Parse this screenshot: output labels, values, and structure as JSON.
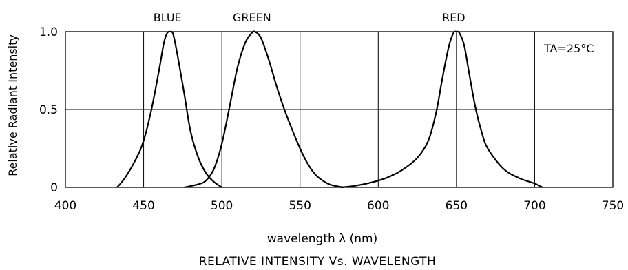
{
  "chart_data": {
    "type": "line",
    "title": "RELATIVE INTENSITY Vs. WAVELENGTH",
    "xlabel": "wavelength λ  (nm)",
    "ylabel": "Relative Radiant Intensity",
    "xlim": [
      400,
      750
    ],
    "ylim": [
      0,
      1.0
    ],
    "x_ticks": [
      400,
      450,
      500,
      550,
      600,
      650,
      700,
      750
    ],
    "x_tick_labels": [
      "400",
      "450",
      "500",
      "550",
      "600",
      "650",
      "700",
      "750"
    ],
    "y_ticks": [
      0,
      0.5,
      1.0
    ],
    "y_tick_labels": [
      "0",
      "0.5",
      "1.0"
    ],
    "grid": true,
    "annotation": "TA=25°C",
    "series": [
      {
        "name": "BLUE",
        "color": "#000000",
        "points": [
          [
            433,
            0.0
          ],
          [
            438,
            0.06
          ],
          [
            445,
            0.18
          ],
          [
            450,
            0.3
          ],
          [
            455,
            0.5
          ],
          [
            460,
            0.76
          ],
          [
            463,
            0.93
          ],
          [
            465,
            0.99
          ],
          [
            467,
            1.0
          ],
          [
            469,
            0.98
          ],
          [
            472,
            0.83
          ],
          [
            476,
            0.6
          ],
          [
            480,
            0.36
          ],
          [
            485,
            0.19
          ],
          [
            490,
            0.09
          ],
          [
            495,
            0.035
          ],
          [
            500,
            0.0
          ]
        ]
      },
      {
        "name": "GREEN",
        "color": "#000000",
        "points": [
          [
            476,
            0.0
          ],
          [
            485,
            0.02
          ],
          [
            490,
            0.045
          ],
          [
            495,
            0.12
          ],
          [
            500,
            0.28
          ],
          [
            505,
            0.52
          ],
          [
            510,
            0.77
          ],
          [
            515,
            0.93
          ],
          [
            519,
            0.99
          ],
          [
            521,
            1.0
          ],
          [
            525,
            0.96
          ],
          [
            530,
            0.82
          ],
          [
            535,
            0.65
          ],
          [
            540,
            0.5
          ],
          [
            545,
            0.37
          ],
          [
            550,
            0.25
          ],
          [
            555,
            0.15
          ],
          [
            560,
            0.08
          ],
          [
            565,
            0.04
          ],
          [
            570,
            0.015
          ],
          [
            578,
            0.0
          ]
        ]
      },
      {
        "name": "RED",
        "color": "#000000",
        "points": [
          [
            576,
            0.0
          ],
          [
            585,
            0.01
          ],
          [
            595,
            0.03
          ],
          [
            605,
            0.06
          ],
          [
            615,
            0.11
          ],
          [
            625,
            0.19
          ],
          [
            632,
            0.3
          ],
          [
            637,
            0.48
          ],
          [
            641,
            0.7
          ],
          [
            645,
            0.9
          ],
          [
            648,
            0.99
          ],
          [
            650,
            1.0
          ],
          [
            652,
            0.99
          ],
          [
            655,
            0.91
          ],
          [
            658,
            0.74
          ],
          [
            662,
            0.52
          ],
          [
            666,
            0.36
          ],
          [
            670,
            0.25
          ],
          [
            680,
            0.12
          ],
          [
            690,
            0.06
          ],
          [
            700,
            0.025
          ],
          [
            705,
            0.0
          ]
        ]
      }
    ]
  }
}
